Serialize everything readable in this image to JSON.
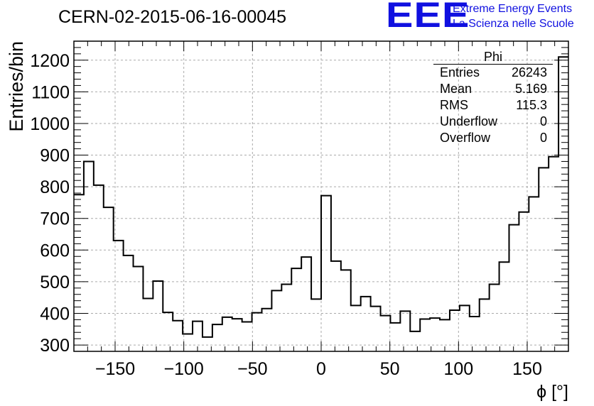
{
  "header": {
    "run_title": "CERN-02-2015-06-16-00045",
    "logo_text": "EEE",
    "logo_line1": "Extreme Energy Events",
    "logo_line2": "La Scienza nelle Scuole"
  },
  "stats_box": {
    "title": "Phi",
    "rows": [
      {
        "label": "Entries",
        "value": "26243"
      },
      {
        "label": "Mean",
        "value": "5.169"
      },
      {
        "label": "RMS",
        "value": "115.3"
      },
      {
        "label": "Underflow",
        "value": "0"
      },
      {
        "label": "Overflow",
        "value": "0"
      }
    ]
  },
  "chart_data": {
    "type": "bar",
    "style": "histogram-step",
    "title": "",
    "xlabel": "ϕ [°]",
    "ylabel": "Entries/bin",
    "xlim": [
      -180,
      180
    ],
    "ylim": [
      280,
      1260
    ],
    "x_ticks": [
      -150,
      -100,
      -50,
      0,
      50,
      100,
      150
    ],
    "x_tick_labels": [
      "−150",
      "−100",
      "−50",
      "0",
      "50",
      "100",
      "150"
    ],
    "y_ticks": [
      300,
      400,
      500,
      600,
      700,
      800,
      900,
      1000,
      1100,
      1200
    ],
    "y_tick_labels": [
      "300",
      "400",
      "500",
      "600",
      "700",
      "800",
      "900",
      "1000",
      "1100",
      "1200"
    ],
    "grid": true,
    "bin_edges_start": -180,
    "bin_width": 7.2,
    "values": [
      775,
      880,
      805,
      735,
      630,
      583,
      548,
      447,
      502,
      403,
      377,
      335,
      375,
      325,
      365,
      388,
      383,
      373,
      402,
      415,
      472,
      492,
      542,
      578,
      445,
      772,
      565,
      537,
      425,
      453,
      422,
      393,
      370,
      407,
      343,
      382,
      385,
      380,
      410,
      425,
      390,
      445,
      492,
      562,
      680,
      720,
      768,
      860,
      895,
      1210
    ]
  }
}
